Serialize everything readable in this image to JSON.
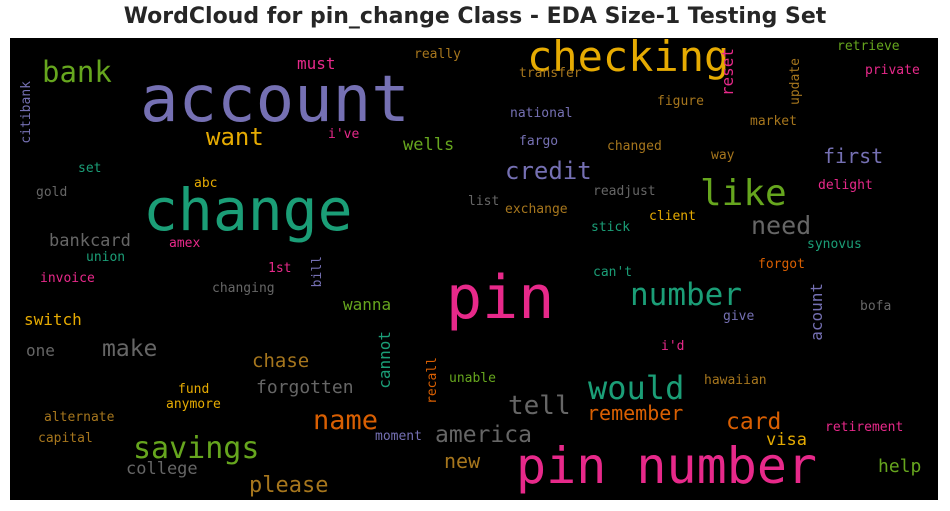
{
  "title": "WordCloud for pin_change Class - EDA Size-1 Testing Set",
  "colors": {
    "background": "#000000",
    "purple": "#7570b3",
    "green": "#1b9e77",
    "orange": "#d95f02",
    "pink": "#e7298a",
    "lime": "#66a61e",
    "gold": "#e6ab02",
    "brown": "#a6761d",
    "gray": "#666666"
  },
  "words": [
    {
      "text": "account",
      "color": "purple"
    },
    {
      "text": "change",
      "color": "green"
    },
    {
      "text": "pin",
      "color": "pink"
    },
    {
      "text": "pin number",
      "color": "pink"
    },
    {
      "text": "checking",
      "color": "gold"
    },
    {
      "text": "bank",
      "color": "lime"
    },
    {
      "text": "like",
      "color": "lime"
    },
    {
      "text": "number",
      "color": "green"
    },
    {
      "text": "would",
      "color": "green"
    },
    {
      "text": "savings",
      "color": "lime"
    },
    {
      "text": "name",
      "color": "orange"
    },
    {
      "text": "america",
      "color": "gray"
    },
    {
      "text": "tell",
      "color": "gray"
    },
    {
      "text": "credit",
      "color": "purple"
    },
    {
      "text": "need",
      "color": "gray"
    },
    {
      "text": "want",
      "color": "gold"
    },
    {
      "text": "make",
      "color": "gray"
    },
    {
      "text": "card",
      "color": "orange"
    },
    {
      "text": "please",
      "color": "brown"
    },
    {
      "text": "remember",
      "color": "orange"
    },
    {
      "text": "first",
      "color": "purple"
    },
    {
      "text": "bankcard",
      "color": "gray"
    },
    {
      "text": "chase",
      "color": "brown"
    },
    {
      "text": "forgotten",
      "color": "gray"
    },
    {
      "text": "new",
      "color": "brown"
    },
    {
      "text": "college",
      "color": "gray"
    },
    {
      "text": "wells",
      "color": "lime"
    },
    {
      "text": "help",
      "color": "lime"
    },
    {
      "text": "visa",
      "color": "gold"
    },
    {
      "text": "wanna",
      "color": "lime"
    },
    {
      "text": "switch",
      "color": "gold"
    },
    {
      "text": "one",
      "color": "gray"
    },
    {
      "text": "must",
      "color": "pink"
    },
    {
      "text": "reset",
      "color": "pink"
    },
    {
      "text": "acount",
      "color": "purple"
    },
    {
      "text": "cannot",
      "color": "green"
    },
    {
      "text": "really",
      "color": "brown"
    },
    {
      "text": "transfer",
      "color": "brown"
    },
    {
      "text": "retrieve",
      "color": "lime"
    },
    {
      "text": "private",
      "color": "pink"
    },
    {
      "text": "update",
      "color": "brown"
    },
    {
      "text": "figure",
      "color": "brown"
    },
    {
      "text": "national",
      "color": "purple"
    },
    {
      "text": "market",
      "color": "brown"
    },
    {
      "text": "fargo",
      "color": "purple"
    },
    {
      "text": "changed",
      "color": "brown"
    },
    {
      "text": "way",
      "color": "brown"
    },
    {
      "text": "delight",
      "color": "pink"
    },
    {
      "text": "readjust",
      "color": "gray"
    },
    {
      "text": "list",
      "color": "gray"
    },
    {
      "text": "exchange",
      "color": "brown"
    },
    {
      "text": "client",
      "color": "gold"
    },
    {
      "text": "stick",
      "color": "green"
    },
    {
      "text": "synovus",
      "color": "green"
    },
    {
      "text": "citibank",
      "color": "purple"
    },
    {
      "text": "i've",
      "color": "pink"
    },
    {
      "text": "set",
      "color": "green"
    },
    {
      "text": "abc",
      "color": "gold"
    },
    {
      "text": "gold",
      "color": "gray"
    },
    {
      "text": "amex",
      "color": "pink"
    },
    {
      "text": "union",
      "color": "green"
    },
    {
      "text": "invoice",
      "color": "pink"
    },
    {
      "text": "1st",
      "color": "pink"
    },
    {
      "text": "bill",
      "color": "purple"
    },
    {
      "text": "changing",
      "color": "gray"
    },
    {
      "text": "can't",
      "color": "green"
    },
    {
      "text": "forgot",
      "color": "orange"
    },
    {
      "text": "bofa",
      "color": "gray"
    },
    {
      "text": "give",
      "color": "purple"
    },
    {
      "text": "i'd",
      "color": "pink"
    },
    {
      "text": "hawaiian",
      "color": "brown"
    },
    {
      "text": "unable",
      "color": "lime"
    },
    {
      "text": "recall",
      "color": "orange"
    },
    {
      "text": "fund",
      "color": "gold"
    },
    {
      "text": "anymore",
      "color": "gold"
    },
    {
      "text": "alternate",
      "color": "brown"
    },
    {
      "text": "capital",
      "color": "brown"
    },
    {
      "text": "moment",
      "color": "purple"
    },
    {
      "text": "retirement",
      "color": "pink"
    }
  ]
}
